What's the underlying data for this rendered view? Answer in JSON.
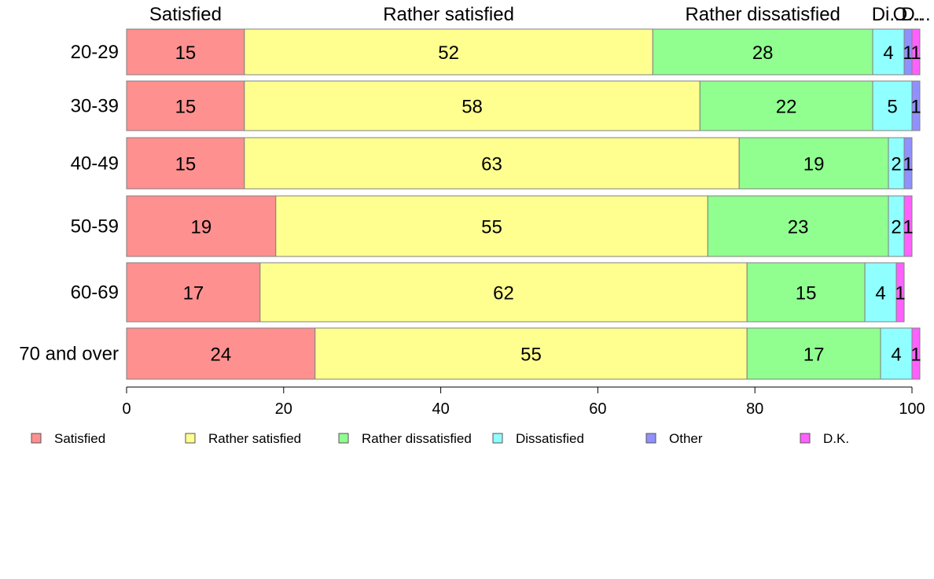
{
  "chart_data": {
    "type": "bar",
    "orientation": "horizontal",
    "stacked": true,
    "categories": [
      "20-29",
      "30-39",
      "40-49",
      "50-59",
      "60-69",
      "70 and over"
    ],
    "series": [
      {
        "name": "Satisfied",
        "color": "#ff9090",
        "values": [
          15,
          15,
          15,
          19,
          17,
          24
        ]
      },
      {
        "name": "Rather satisfied",
        "color": "#ffff90",
        "values": [
          52,
          58,
          63,
          55,
          62,
          55
        ]
      },
      {
        "name": "Rather dissatisfied",
        "color": "#90ff90",
        "values": [
          28,
          22,
          19,
          23,
          15,
          17
        ]
      },
      {
        "name": "Dissatisfied",
        "color": "#90ffff",
        "values": [
          4,
          5,
          2,
          2,
          4,
          4
        ]
      },
      {
        "name": "Other",
        "color": "#9090ff",
        "values": [
          1,
          1,
          1,
          0,
          0,
          0
        ]
      },
      {
        "name": "D.K.",
        "color": "#ff60ff",
        "values": [
          1,
          0,
          0,
          1,
          1,
          1
        ]
      }
    ],
    "top_labels": [
      "Satisfied",
      "Rather satisfied",
      "Rather dissatisfied",
      "Di...",
      "O...",
      "D..."
    ],
    "xlim": [
      0,
      100
    ],
    "xticks": [
      0,
      20,
      40,
      60,
      80,
      100
    ],
    "title": "",
    "xlabel": "",
    "ylabel": "",
    "legend_position": "bottom",
    "grid": false
  }
}
